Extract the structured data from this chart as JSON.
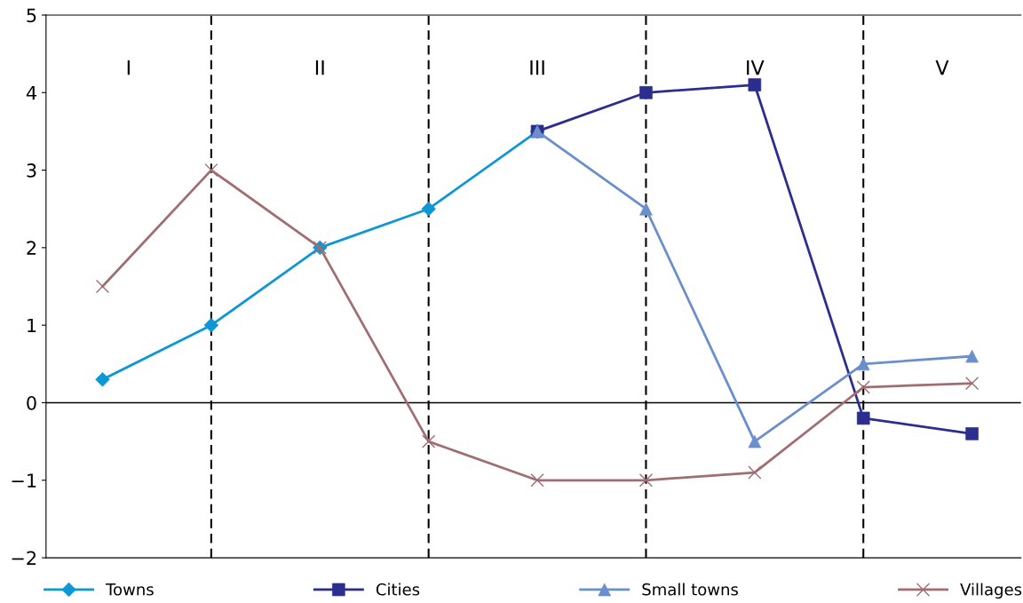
{
  "chart_data": {
    "type": "line",
    "categories": [
      null,
      null,
      null,
      null,
      null,
      null,
      null,
      null,
      null
    ],
    "ylim": [
      -2,
      5
    ],
    "yticks": [
      {
        "value": -2,
        "label": "−2"
      },
      {
        "value": -1,
        "label": "−1"
      },
      {
        "value": 0,
        "label": "0"
      },
      {
        "value": 1,
        "label": "1"
      },
      {
        "value": 2,
        "label": "2"
      },
      {
        "value": 3,
        "label": "3"
      },
      {
        "value": 4,
        "label": "4"
      },
      {
        "value": 5,
        "label": "5"
      }
    ],
    "tick_labels": "y",
    "grid": "x",
    "legend": "bottom",
    "series": [
      {
        "name": "Towns",
        "color": "#0d97d6",
        "marker": "diamond",
        "values": [
          0.3,
          1.0,
          2.0,
          2.5,
          3.5,
          null,
          null,
          null,
          null
        ]
      },
      {
        "name": "Cities",
        "color": "#2b2e8f",
        "marker": "square",
        "values": [
          null,
          null,
          null,
          null,
          3.5,
          4.0,
          4.1,
          -0.2,
          -0.4
        ]
      },
      {
        "name": "Small towns",
        "color": "#6b8fcc",
        "marker": "triangle",
        "values": [
          null,
          null,
          null,
          null,
          3.5,
          2.5,
          -0.5,
          0.5,
          0.6
        ]
      },
      {
        "name": "Villages",
        "color": "#a06e70",
        "marker": "cross",
        "values": [
          1.5,
          3.0,
          2.0,
          -0.5,
          -1.0,
          -1.0,
          -0.9,
          0.2,
          0.25
        ]
      }
    ],
    "ref_lines": [
      {
        "axis": "y",
        "value": 0,
        "color": "#000000",
        "line_style": "solid"
      }
    ],
    "annotations": [
      "I",
      "II",
      "III",
      "IV",
      "V"
    ]
  }
}
